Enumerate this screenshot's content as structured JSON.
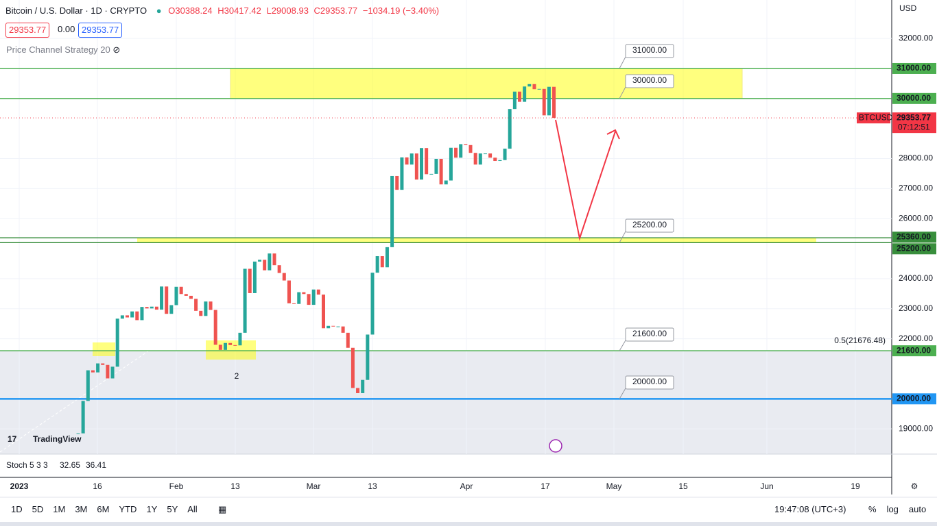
{
  "header": {
    "symbol": "Bitcoin / U.S. Dollar · 1D · CRYPTO",
    "open": "O30388.24",
    "high": "H30417.42",
    "low": "L29008.93",
    "close": "C29353.77",
    "change": "−1034.19 (−3.40%)",
    "sell": "29353.77",
    "spread": "0.00",
    "buy": "29353.77",
    "indicator": "Price Channel Strategy 20"
  },
  "chart_data": {
    "type": "candlestick",
    "currency": "USD",
    "up_color": "#26a69a",
    "down_color": "#ef5350",
    "values": [
      18850,
      19930,
      20950,
      20880,
      21180,
      21130,
      20680,
      21070,
      22670,
      22780,
      22710,
      22910,
      22620,
      23060,
      23010,
      23070,
      22970,
      23740,
      22830,
      23120,
      23730,
      23490,
      23430,
      23330,
      22930,
      22760,
      23240,
      22960,
      21800,
      21630,
      21860,
      21790,
      21780,
      22200,
      24330,
      23520,
      24570,
      24630,
      24280,
      24840,
      24450,
      24190,
      23940,
      23180,
      23160,
      23550,
      23490,
      23130,
      23640,
      23470,
      22350,
      22430,
      22410,
      22410,
      22200,
      21700,
      20360,
      20190,
      20630,
      22140,
      24200,
      24750,
      24380,
      25050,
      27420,
      26960,
      28040,
      27800,
      28170,
      27300,
      28350,
      27480,
      27490,
      27990,
      27140,
      27270,
      28360,
      28030,
      28480,
      28450,
      28190,
      27800,
      28170,
      28170,
      28030,
      27920,
      27950,
      28330,
      29650,
      30230,
      29890,
      30400,
      30480,
      30310,
      30320,
      29440,
      30390,
      29353.77
    ],
    "ylim": [
      18160,
      33280
    ],
    "yticks": [
      {
        "value": 32000,
        "label": "32000.00"
      },
      {
        "value": 28000,
        "label": "28000.00"
      },
      {
        "value": 27000,
        "label": "27000.00"
      },
      {
        "value": 26000,
        "label": "26000.00"
      },
      {
        "value": 24000,
        "label": "24000.00"
      },
      {
        "value": 23000,
        "label": "23000.00"
      },
      {
        "value": 22000,
        "label": "22000.00"
      },
      {
        "value": 19000,
        "label": "19000.00"
      }
    ],
    "xticks": [
      "2023",
      "16",
      "Feb",
      "13",
      "Mar",
      "13",
      "Apr",
      "17",
      "May",
      "15",
      "Jun",
      "19"
    ],
    "levels": [
      {
        "value": 31000,
        "label": "31000.00",
        "color": "#4caf50"
      },
      {
        "value": 30000,
        "label": "30000.00",
        "color": "#4caf50"
      },
      {
        "value": 25360,
        "label": "25360.00",
        "color": "#388e3c"
      },
      {
        "value": 25200,
        "label": "25200.00",
        "color": "#388e3c"
      },
      {
        "value": 21600,
        "label": "21600.00",
        "color": "#4caf50"
      },
      {
        "value": 20000,
        "label": "20000.00",
        "color": "#2196f3"
      }
    ],
    "price_tag": {
      "symbol": "BTCUSD",
      "value": 29353.77,
      "label": "29353.77",
      "countdown": "07:12:51",
      "color": "#f23645"
    },
    "fib_label": "0.5(21676.48)",
    "annotation": "2",
    "logo": "TradingView"
  },
  "stoch": {
    "name": "Stoch 5 3 3",
    "k": "32.65",
    "d": "36.41"
  },
  "toolbar": {
    "ranges": [
      "1D",
      "5D",
      "1M",
      "3M",
      "6M",
      "YTD",
      "1Y",
      "5Y",
      "All"
    ],
    "time": "19:47:08 (UTC+3)",
    "options": [
      "%",
      "log",
      "auto"
    ]
  }
}
